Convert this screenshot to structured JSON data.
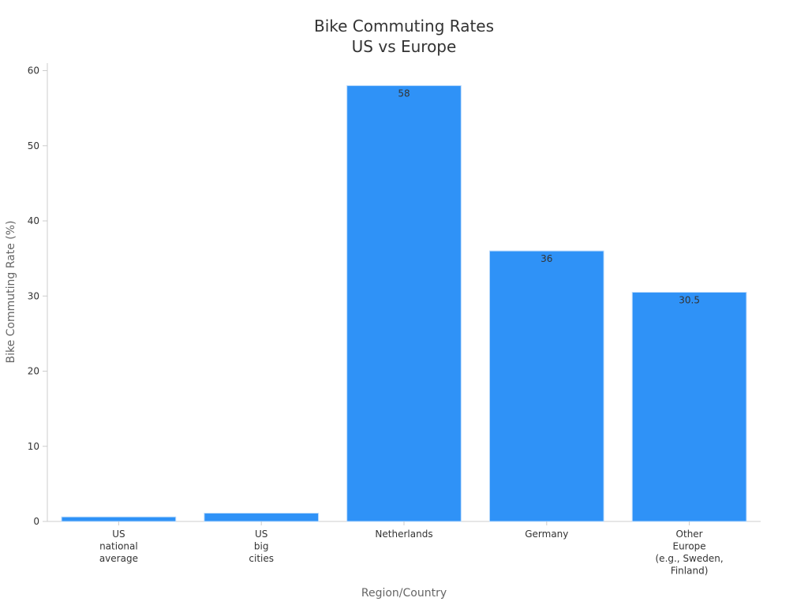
{
  "chart_data": {
    "type": "bar",
    "title": [
      "Bike Commuting Rates",
      "US vs Europe"
    ],
    "xlabel": "Region/Country",
    "ylabel": "Bike Commuting Rate (%)",
    "categories": [
      [
        "US",
        "national",
        "average"
      ],
      [
        "US",
        "big",
        "cities"
      ],
      [
        "Netherlands"
      ],
      [
        "Germany"
      ],
      [
        "Other",
        "Europe",
        "(e.g., Sweden,",
        "Finland)"
      ]
    ],
    "values": [
      0.6,
      1.1,
      58,
      36,
      30.5
    ],
    "data_labels": [
      "",
      "",
      "58",
      "36",
      "30.5"
    ],
    "ylim": [
      0,
      61
    ],
    "yticks": [
      0,
      10,
      20,
      30,
      40,
      50,
      60
    ],
    "grid": false,
    "legend": "none",
    "colors": {
      "bar": "#2f92f7",
      "bar_edge": "#b8d9fb"
    }
  }
}
